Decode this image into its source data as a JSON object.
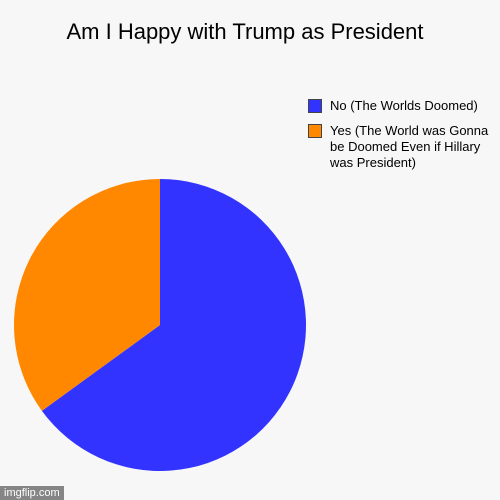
{
  "chart_data": {
    "type": "pie",
    "title": "Am I Happy with Trump as President",
    "categories": [
      "No (The Worlds Doomed)",
      "Yes (The World was Gonna be Doomed Even if Hillary was President)"
    ],
    "values": [
      65,
      35
    ],
    "colors": [
      "#3333ff",
      "#ff8800"
    ],
    "legend_position": "top-right"
  },
  "legend": {
    "items": [
      {
        "label": "No (The Worlds Doomed)",
        "color": "#3333ff"
      },
      {
        "label": "Yes (The World was Gonna be Doomed Even if Hillary was President)",
        "color": "#ff8800"
      }
    ]
  },
  "watermark": "imgflip.com"
}
